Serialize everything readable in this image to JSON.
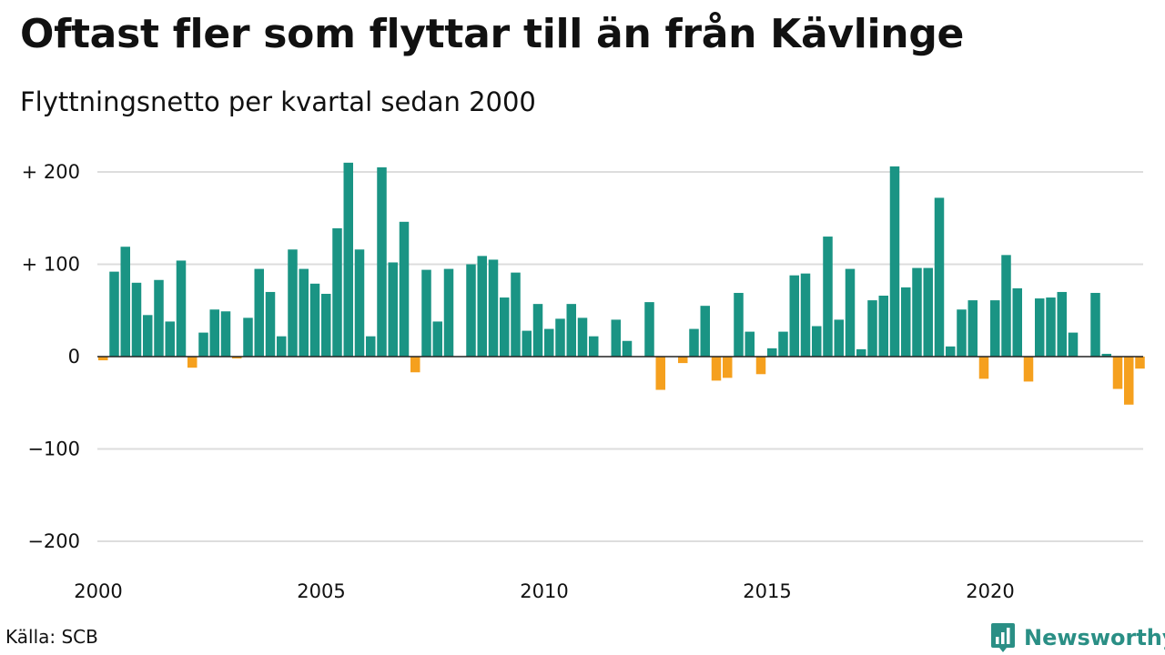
{
  "title": "Oftast fler som flyttar till än från Kävlinge",
  "subtitle": "Flyttningsnetto per kvartal sedan 2000",
  "source": "Källa: SCB",
  "brand": {
    "name": "Newsworthy",
    "icon": "newsworthy-logo-icon"
  },
  "colors": {
    "positive": "#1a9484",
    "negative": "#f5a01e",
    "grid": "#dddddd"
  },
  "chart_data": {
    "type": "bar",
    "ylim": [
      -200,
      220
    ],
    "grid": true,
    "y_ticks": [
      {
        "value": 200,
        "label": "+ 200"
      },
      {
        "value": 100,
        "label": "+ 100"
      },
      {
        "value": 0,
        "label": "0"
      },
      {
        "value": -100,
        "label": "−100"
      },
      {
        "value": -200,
        "label": "−200"
      }
    ],
    "x_ticks": [
      {
        "value": 2000,
        "label": "2000"
      },
      {
        "value": 2005,
        "label": "2005"
      },
      {
        "value": 2010,
        "label": "2010"
      },
      {
        "value": 2015,
        "label": "2015"
      },
      {
        "value": 2020,
        "label": "2020"
      }
    ],
    "x_start": 2000,
    "x_period": "quarter",
    "values": [
      -4,
      92,
      119,
      80,
      45,
      83,
      38,
      104,
      -12,
      26,
      51,
      49,
      -2,
      42,
      95,
      70,
      22,
      116,
      95,
      79,
      68,
      139,
      210,
      116,
      22,
      205,
      102,
      146,
      -17,
      94,
      38,
      95,
      0,
      100,
      109,
      105,
      64,
      91,
      28,
      57,
      30,
      41,
      57,
      42,
      22,
      0,
      40,
      17,
      0,
      59,
      -36,
      0,
      -7,
      30,
      55,
      -26,
      -23,
      69,
      27,
      -19,
      9,
      27,
      88,
      90,
      33,
      130,
      40,
      95,
      8,
      61,
      66,
      206,
      75,
      96,
      96,
      172,
      11,
      51,
      61,
      -24,
      61,
      110,
      74,
      -27,
      63,
      64,
      70,
      26,
      0,
      69,
      3,
      -35,
      -52,
      -13
    ]
  }
}
